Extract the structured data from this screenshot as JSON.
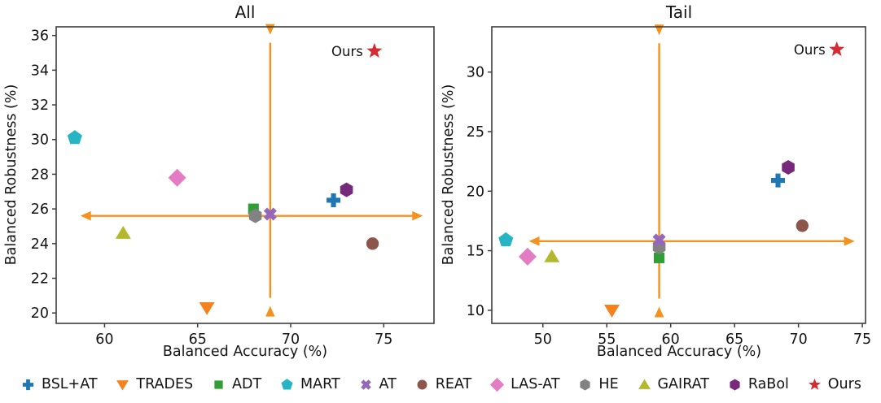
{
  "figure": {
    "background": "#ffffff",
    "frame_color": "#3d3d3d",
    "text_color": "#141414"
  },
  "legend": {
    "items": [
      {
        "label": "BSL+AT",
        "marker": "plus",
        "color": "#1f77b4"
      },
      {
        "label": "TRADES",
        "marker": "triangle_down",
        "color": "#f5821e"
      },
      {
        "label": "ADT",
        "marker": "square",
        "color": "#2f9e34"
      },
      {
        "label": "MART",
        "marker": "pentagon",
        "color": "#27b5c6"
      },
      {
        "label": "AT",
        "marker": "x",
        "color": "#9467bd"
      },
      {
        "label": "REAT",
        "marker": "circle",
        "color": "#8c564b"
      },
      {
        "label": "LAS-AT",
        "marker": "diamond",
        "color": "#e47cc4"
      },
      {
        "label": "HE",
        "marker": "hexagon",
        "color": "#828282"
      },
      {
        "label": "GAIRAT",
        "marker": "triangle_up",
        "color": "#b3b82f"
      },
      {
        "label": "RaBol",
        "marker": "hexagon",
        "color": "#772a7c"
      },
      {
        "label": "Ours",
        "marker": "star",
        "color": "#d62b33"
      }
    ]
  },
  "chart_data": [
    {
      "type": "scatter",
      "title": "All",
      "xlabel": "Balanced Accuracy (%)",
      "ylabel": "Balanced Robustness (%)",
      "xlim": [
        57.4,
        77.7
      ],
      "ylim": [
        19.4,
        36.5
      ],
      "xticks": [
        60,
        65,
        70,
        75
      ],
      "yticks": [
        20,
        22,
        24,
        26,
        28,
        30,
        32,
        34,
        36
      ],
      "grid": false,
      "annotation": {
        "label": "Ours",
        "x": 74.5,
        "y": 35.1
      },
      "arrows": {
        "color": "#f5921e",
        "vertical": {
          "x": 68.9,
          "y0": 20.4,
          "y1": 36.05
        },
        "horizontal": {
          "y": 25.6,
          "x0": 58.7,
          "x1": 77.1
        }
      },
      "series": [
        {
          "name": "MART",
          "marker": "pentagon",
          "color": "#27b5c6",
          "x": 58.4,
          "y": 30.1
        },
        {
          "name": "TRADES",
          "marker": "triangle_down",
          "color": "#f5821e",
          "x": 65.5,
          "y": 20.3
        },
        {
          "name": "GAIRAT",
          "marker": "triangle_up",
          "color": "#b3b82f",
          "x": 61.0,
          "y": 24.6
        },
        {
          "name": "LAS-AT",
          "marker": "diamond",
          "color": "#e47cc4",
          "x": 63.9,
          "y": 27.8
        },
        {
          "name": "REAT",
          "marker": "circle",
          "color": "#8c564b",
          "x": 74.4,
          "y": 24.0
        },
        {
          "name": "ADT",
          "marker": "square",
          "color": "#2f9e34",
          "x": 68.0,
          "y": 26.0
        },
        {
          "name": "HE",
          "marker": "hexagon",
          "color": "#828282",
          "x": 68.1,
          "y": 25.6
        },
        {
          "name": "AT",
          "marker": "x",
          "color": "#9467bd",
          "x": 68.9,
          "y": 25.7
        },
        {
          "name": "BSL+AT",
          "marker": "plus",
          "color": "#1f77b4",
          "x": 72.3,
          "y": 26.5
        },
        {
          "name": "RaBol",
          "marker": "hexagon",
          "color": "#772a7c",
          "x": 73.0,
          "y": 27.1
        },
        {
          "name": "Ours",
          "marker": "star",
          "color": "#d62b33",
          "x": 74.5,
          "y": 35.1
        }
      ]
    },
    {
      "type": "scatter",
      "title": "Tail",
      "xlabel": "Balanced Accuracy (%)",
      "ylabel": "Balanced Robustness (%)",
      "xlim": [
        46.0,
        75.25
      ],
      "ylim": [
        8.9,
        33.8
      ],
      "xticks": [
        50,
        55,
        60,
        65,
        70,
        75
      ],
      "yticks": [
        10,
        15,
        20,
        25,
        30
      ],
      "grid": false,
      "annotation": {
        "label": "Ours",
        "x": 73.0,
        "y": 31.9
      },
      "arrows": {
        "color": "#f5921e",
        "vertical": {
          "x": 59.1,
          "y0": 10.3,
          "y1": 33.1
        },
        "horizontal": {
          "y": 15.8,
          "x0": 48.9,
          "x1": 74.4
        }
      },
      "series": [
        {
          "name": "MART",
          "marker": "pentagon",
          "color": "#27b5c6",
          "x": 47.1,
          "y": 15.9
        },
        {
          "name": "TRADES",
          "marker": "triangle_down",
          "color": "#f5821e",
          "x": 55.4,
          "y": 10.0
        },
        {
          "name": "GAIRAT",
          "marker": "triangle_up",
          "color": "#b3b82f",
          "x": 50.7,
          "y": 14.5
        },
        {
          "name": "LAS-AT",
          "marker": "diamond",
          "color": "#e47cc4",
          "x": 48.8,
          "y": 14.5
        },
        {
          "name": "REAT",
          "marker": "circle",
          "color": "#8c564b",
          "x": 70.3,
          "y": 17.1
        },
        {
          "name": "ADT",
          "marker": "square",
          "color": "#2f9e34",
          "x": 59.1,
          "y": 14.4
        },
        {
          "name": "HE",
          "marker": "hexagon",
          "color": "#828282",
          "x": 59.1,
          "y": 15.3
        },
        {
          "name": "AT",
          "marker": "x",
          "color": "#9467bd",
          "x": 59.1,
          "y": 15.9
        },
        {
          "name": "BSL+AT",
          "marker": "plus",
          "color": "#1f77b4",
          "x": 68.4,
          "y": 20.9
        },
        {
          "name": "RaBol",
          "marker": "hexagon",
          "color": "#772a7c",
          "x": 69.2,
          "y": 22.0
        },
        {
          "name": "Ours",
          "marker": "star",
          "color": "#d62b33",
          "x": 73.0,
          "y": 31.9
        }
      ]
    }
  ]
}
